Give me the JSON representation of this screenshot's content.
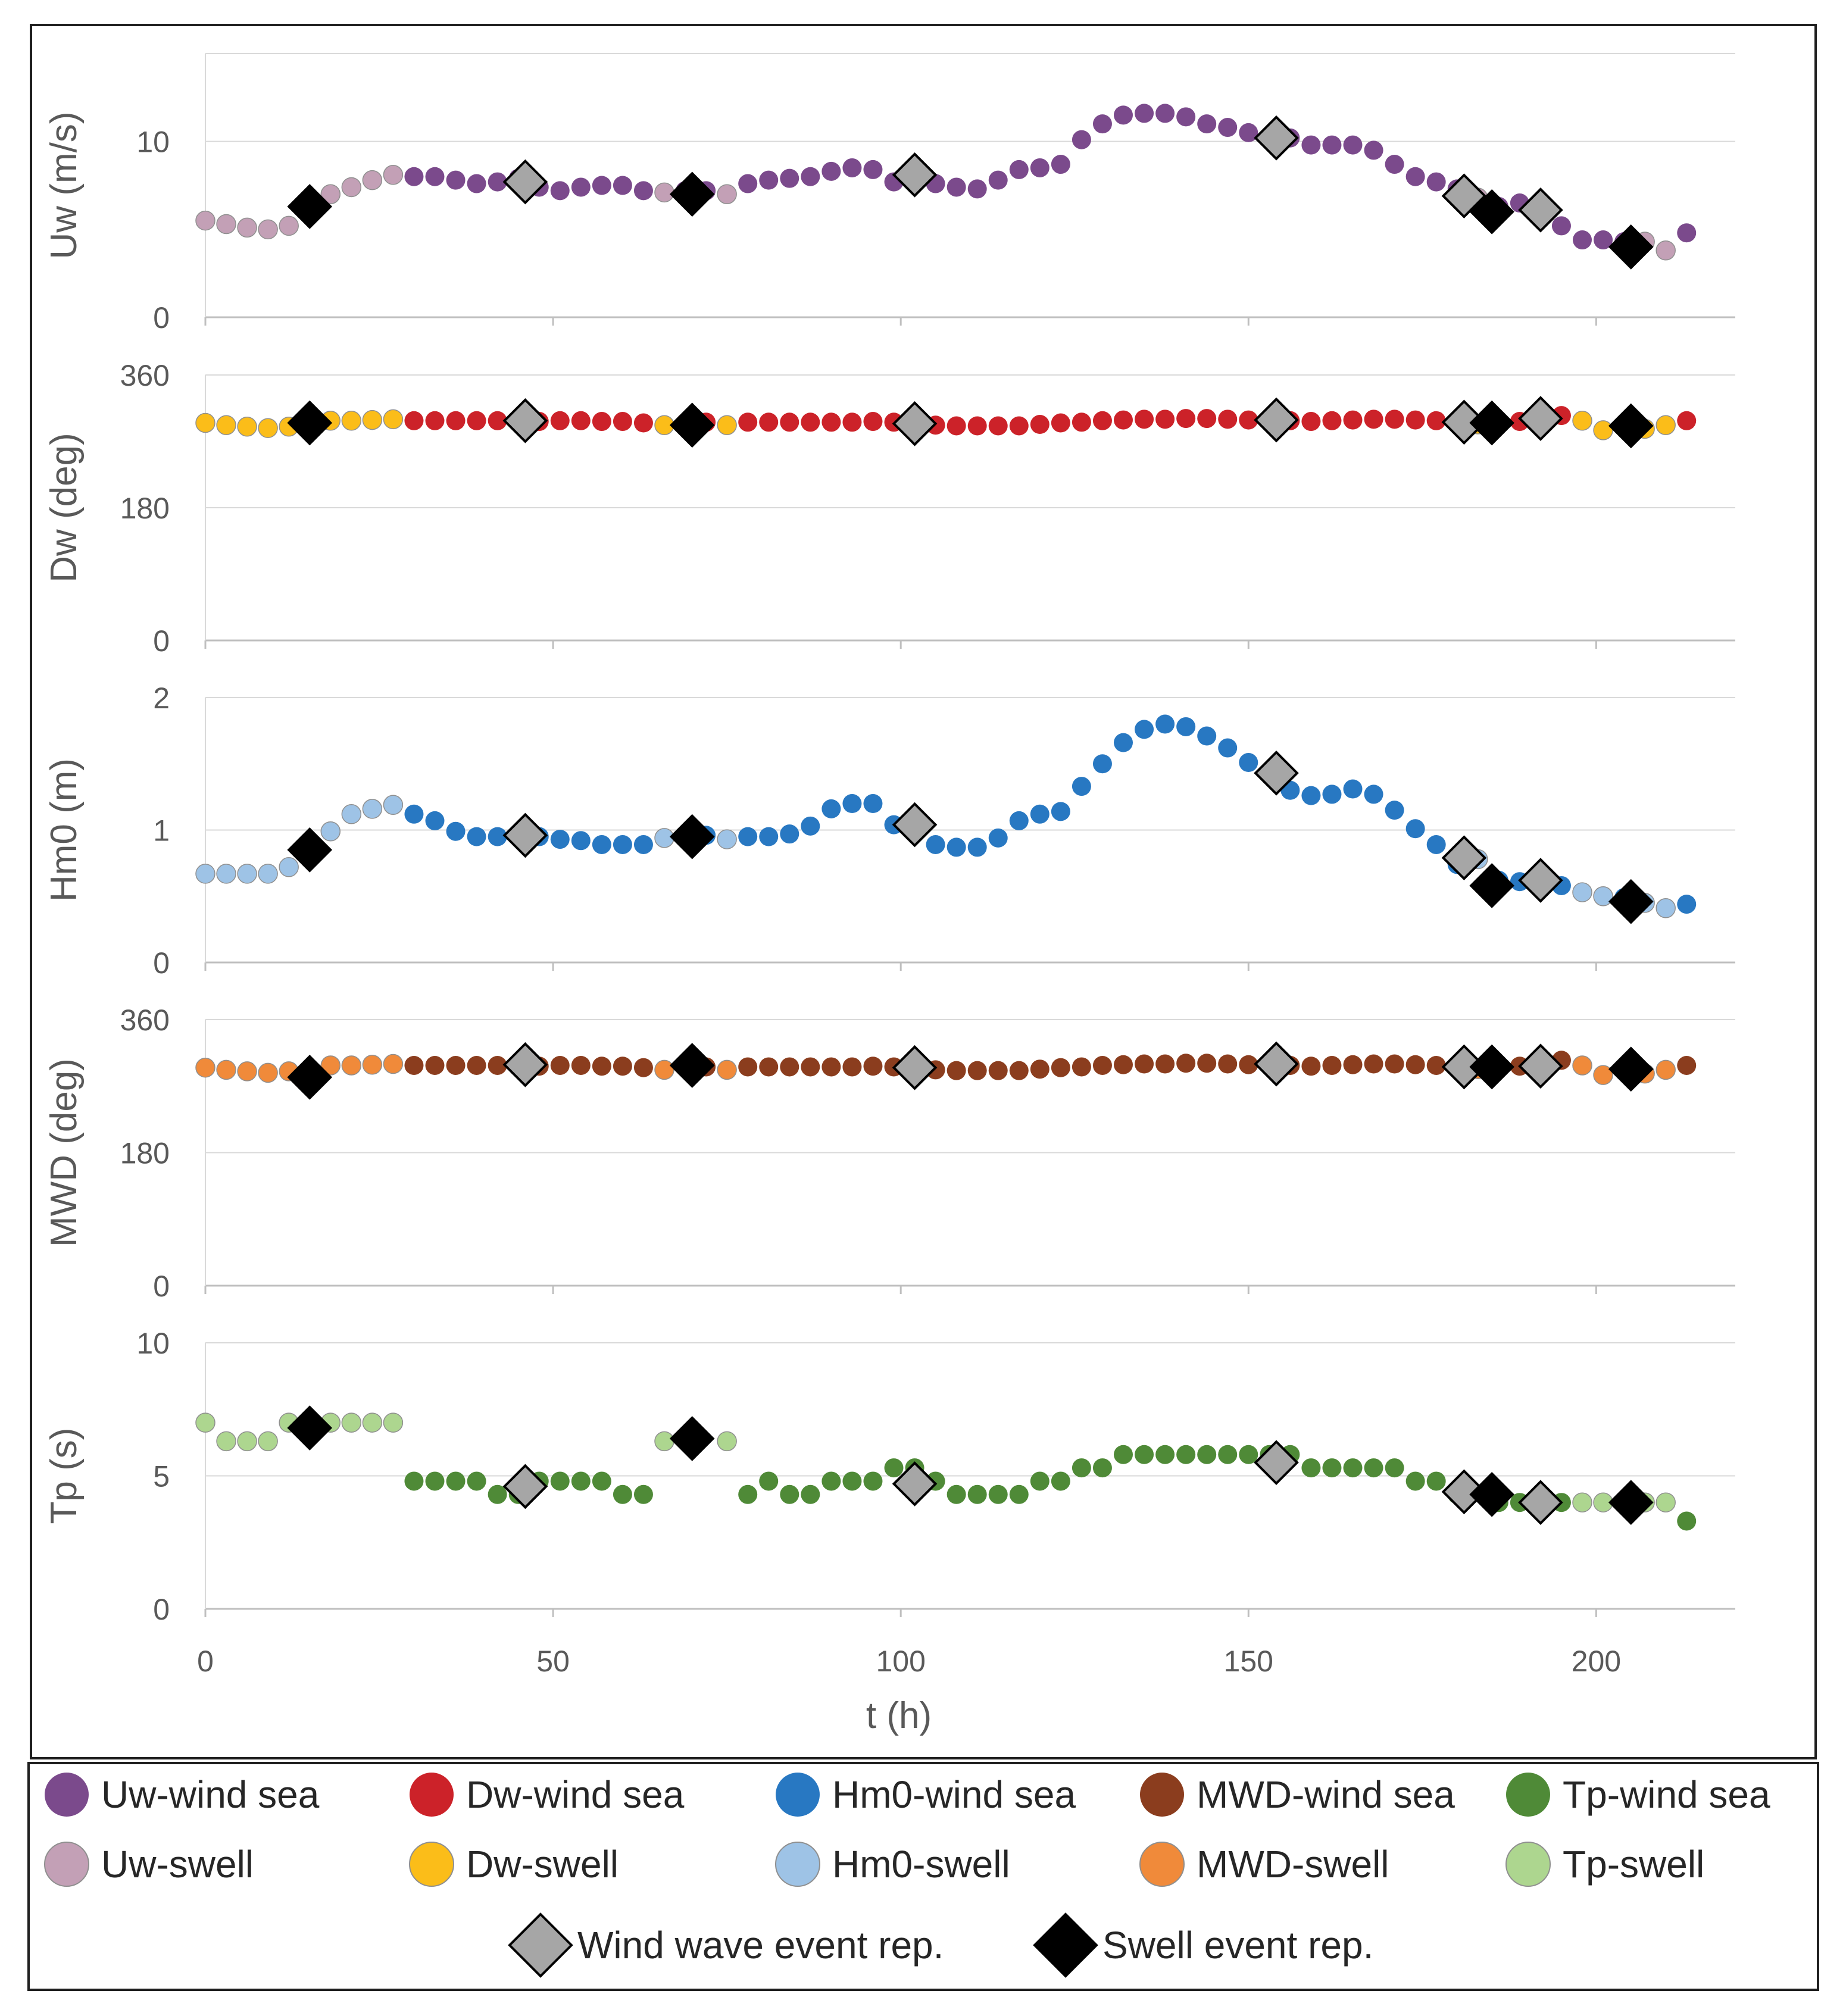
{
  "figure": {
    "xlabel": "t (h)",
    "xticks": [
      0,
      50,
      100,
      150,
      200
    ],
    "xlim": [
      0,
      220
    ]
  },
  "colors": {
    "Uw-wind sea": "#7b4a8c",
    "Uw-swell": "#c3a0b6",
    "Dw-wind sea": "#cc2229",
    "Dw-swell": "#fbbd19",
    "Hm0-wind sea": "#2878c2",
    "Hm0-swell": "#9ec3e6",
    "MWD-wind sea": "#8b3d1e",
    "MWD-swell": "#f08a3a",
    "Tp-wind sea": "#4f8a37",
    "Tp-swell": "#add68f",
    "Wind wave event rep.": "#a6a6a6",
    "Swell event rep.": "#000000",
    "gridline": "#d9d9d9",
    "axis": "#bfbfbf",
    "text": "#595959"
  },
  "legend": {
    "items": [
      {
        "label": "Uw-wind sea",
        "marker": "circle"
      },
      {
        "label": "Dw-wind sea",
        "marker": "circle"
      },
      {
        "label": "Hm0-wind sea",
        "marker": "circle"
      },
      {
        "label": "MWD-wind sea",
        "marker": "circle"
      },
      {
        "label": "Tp-wind sea",
        "marker": "circle"
      },
      {
        "label": "Uw-swell",
        "marker": "circle"
      },
      {
        "label": "Dw-swell",
        "marker": "circle"
      },
      {
        "label": "Hm0-swell",
        "marker": "circle"
      },
      {
        "label": "MWD-swell",
        "marker": "circle"
      },
      {
        "label": "Tp-swell",
        "marker": "circle"
      },
      {
        "label": "Wind wave event rep.",
        "marker": "diamond"
      },
      {
        "label": "Swell event rep.",
        "marker": "diamond"
      }
    ]
  },
  "chart_data": [
    {
      "type": "scatter",
      "id": "uw",
      "ylabel": "Uw (m/s)",
      "ylim": [
        0,
        15
      ],
      "yticks": [
        0,
        10
      ],
      "series": [
        {
          "name": "Uw-swell",
          "x": [
            0,
            3,
            6,
            9,
            12,
            18,
            21,
            24,
            27,
            66,
            75,
            183,
            207,
            210
          ],
          "y": [
            5.5,
            5.3,
            5.1,
            5.0,
            5.2,
            7.0,
            7.4,
            7.8,
            8.1,
            7.1,
            7.0,
            6.8,
            4.3,
            3.8
          ]
        },
        {
          "name": "Uw-wind sea",
          "x": [
            15,
            30,
            33,
            36,
            39,
            42,
            45,
            48,
            51,
            54,
            57,
            60,
            63,
            69,
            72,
            78,
            81,
            84,
            87,
            90,
            93,
            96,
            99,
            102,
            105,
            108,
            111,
            114,
            117,
            120,
            123,
            126,
            129,
            132,
            135,
            138,
            141,
            144,
            147,
            150,
            153,
            156,
            159,
            162,
            165,
            168,
            171,
            174,
            177,
            180,
            186,
            189,
            192,
            195,
            198,
            201,
            204,
            213
          ],
          "y": [
            6.2,
            8.0,
            8.0,
            7.8,
            7.6,
            7.7,
            7.9,
            7.4,
            7.2,
            7.4,
            7.5,
            7.5,
            7.2,
            7.2,
            7.2,
            7.6,
            7.8,
            7.9,
            8.0,
            8.3,
            8.5,
            8.4,
            7.7,
            8.0,
            7.6,
            7.4,
            7.3,
            7.8,
            8.4,
            8.5,
            8.7,
            10.1,
            11.0,
            11.5,
            11.6,
            11.6,
            11.4,
            11.0,
            10.8,
            10.5,
            10.2,
            10.2,
            9.8,
            9.8,
            9.8,
            9.5,
            8.7,
            8.0,
            7.7,
            7.3,
            6.3,
            6.5,
            6.6,
            5.2,
            4.4,
            4.4,
            4.3,
            4.8
          ]
        },
        {
          "name": "Wind wave event rep.",
          "x": [
            46,
            102,
            154,
            181,
            192
          ],
          "y": [
            7.7,
            8.1,
            10.2,
            6.9,
            6.1
          ]
        },
        {
          "name": "Swell event rep.",
          "x": [
            15,
            70,
            185,
            205
          ],
          "y": [
            6.3,
            7.0,
            6.0,
            4.0
          ]
        }
      ]
    },
    {
      "type": "scatter",
      "id": "dw",
      "ylabel": "Dw (deg)",
      "ylim": [
        0,
        360
      ],
      "yticks": [
        0,
        180,
        360
      ],
      "series": [
        {
          "name": "Dw-swell",
          "x": [
            0,
            3,
            6,
            9,
            12,
            18,
            21,
            24,
            27,
            66,
            75,
            183,
            198,
            201,
            207,
            210
          ],
          "y": [
            295,
            292,
            290,
            288,
            290,
            298,
            298,
            299,
            300,
            292,
            292,
            293,
            298,
            285,
            287,
            292
          ]
        },
        {
          "name": "Dw-wind sea",
          "x": [
            15,
            30,
            33,
            36,
            39,
            42,
            45,
            48,
            51,
            54,
            57,
            60,
            63,
            69,
            72,
            78,
            81,
            84,
            87,
            90,
            93,
            96,
            99,
            102,
            105,
            108,
            111,
            114,
            117,
            120,
            123,
            126,
            129,
            132,
            135,
            138,
            141,
            144,
            147,
            150,
            153,
            156,
            159,
            162,
            165,
            168,
            171,
            174,
            177,
            180,
            186,
            189,
            192,
            195,
            204,
            213
          ],
          "y": [
            294,
            298,
            298,
            298,
            298,
            298,
            296,
            297,
            298,
            298,
            297,
            297,
            295,
            295,
            296,
            296,
            296,
            296,
            296,
            296,
            296,
            297,
            296,
            294,
            292,
            291,
            291,
            291,
            291,
            293,
            295,
            296,
            298,
            299,
            300,
            300,
            301,
            301,
            300,
            299,
            298,
            298,
            297,
            298,
            299,
            300,
            300,
            299,
            298,
            296,
            296,
            297,
            299,
            305,
            292,
            298
          ]
        },
        {
          "name": "Wind wave event rep.",
          "x": [
            46,
            102,
            154,
            181,
            192
          ],
          "y": [
            298,
            294,
            299,
            296,
            301
          ]
        },
        {
          "name": "Swell event rep.",
          "x": [
            15,
            70,
            185,
            205
          ],
          "y": [
            295,
            292,
            295,
            291
          ]
        }
      ]
    },
    {
      "type": "scatter",
      "id": "hm0",
      "ylabel": "Hm0 (m)",
      "ylim": [
        0,
        2
      ],
      "yticks": [
        0,
        1,
        2
      ],
      "series": [
        {
          "name": "Hm0-swell",
          "x": [
            0,
            3,
            6,
            9,
            12,
            18,
            21,
            24,
            27,
            66,
            69,
            75,
            183,
            198,
            201,
            207,
            210
          ],
          "y": [
            0.67,
            0.67,
            0.67,
            0.67,
            0.72,
            0.99,
            1.12,
            1.16,
            1.19,
            0.94,
            0.96,
            0.93,
            0.78,
            0.53,
            0.5,
            0.45,
            0.41
          ]
        },
        {
          "name": "Hm0-wind sea",
          "x": [
            15,
            30,
            33,
            36,
            39,
            42,
            45,
            48,
            51,
            54,
            57,
            60,
            63,
            72,
            78,
            81,
            84,
            87,
            90,
            93,
            96,
            99,
            102,
            105,
            108,
            111,
            114,
            117,
            120,
            123,
            126,
            129,
            132,
            135,
            138,
            141,
            144,
            147,
            150,
            153,
            156,
            159,
            162,
            165,
            168,
            171,
            174,
            177,
            180,
            186,
            189,
            192,
            195,
            204,
            213
          ],
          "y": [
            0.84,
            1.12,
            1.07,
            0.99,
            0.95,
            0.95,
            0.97,
            0.95,
            0.93,
            0.92,
            0.89,
            0.89,
            0.89,
            0.96,
            0.95,
            0.95,
            0.97,
            1.03,
            1.16,
            1.2,
            1.2,
            1.04,
            1.0,
            0.89,
            0.87,
            0.87,
            0.94,
            1.07,
            1.12,
            1.14,
            1.33,
            1.5,
            1.66,
            1.76,
            1.8,
            1.78,
            1.71,
            1.62,
            1.51,
            1.43,
            1.3,
            1.26,
            1.27,
            1.31,
            1.27,
            1.15,
            1.01,
            0.89,
            0.74,
            0.62,
            0.61,
            0.61,
            0.58,
            0.49,
            0.44
          ]
        },
        {
          "name": "Wind wave event rep.",
          "x": [
            46,
            102,
            154,
            181,
            192
          ],
          "y": [
            0.96,
            1.04,
            1.43,
            0.79,
            0.62
          ]
        },
        {
          "name": "Swell event rep.",
          "x": [
            15,
            70,
            185,
            205
          ],
          "y": [
            0.85,
            0.95,
            0.58,
            0.46
          ]
        }
      ]
    },
    {
      "type": "scatter",
      "id": "mwd",
      "ylabel": "MWD (deg)",
      "ylim": [
        0,
        360
      ],
      "yticks": [
        0,
        180,
        360
      ],
      "series": [
        {
          "name": "MWD-swell",
          "x": [
            0,
            3,
            6,
            9,
            12,
            18,
            21,
            24,
            27,
            66,
            75,
            183,
            198,
            201,
            207,
            210
          ],
          "y": [
            295,
            292,
            290,
            288,
            290,
            298,
            298,
            299,
            300,
            292,
            292,
            293,
            298,
            285,
            287,
            292
          ]
        },
        {
          "name": "MWD-wind sea",
          "x": [
            15,
            30,
            33,
            36,
            39,
            42,
            45,
            48,
            51,
            54,
            57,
            60,
            63,
            69,
            72,
            78,
            81,
            84,
            87,
            90,
            93,
            96,
            99,
            102,
            105,
            108,
            111,
            114,
            117,
            120,
            123,
            126,
            129,
            132,
            135,
            138,
            141,
            144,
            147,
            150,
            153,
            156,
            159,
            162,
            165,
            168,
            171,
            174,
            177,
            180,
            186,
            189,
            192,
            195,
            204,
            213
          ],
          "y": [
            284,
            298,
            298,
            298,
            298,
            298,
            296,
            297,
            298,
            298,
            297,
            297,
            295,
            295,
            296,
            296,
            296,
            296,
            296,
            296,
            296,
            297,
            296,
            294,
            292,
            291,
            291,
            291,
            291,
            293,
            295,
            296,
            298,
            299,
            300,
            300,
            301,
            301,
            300,
            299,
            298,
            298,
            297,
            298,
            299,
            300,
            300,
            299,
            298,
            296,
            296,
            297,
            299,
            305,
            292,
            298
          ]
        },
        {
          "name": "Wind wave event rep.",
          "x": [
            46,
            102,
            154,
            181,
            192
          ],
          "y": [
            299,
            295,
            300,
            296,
            297
          ]
        },
        {
          "name": "Swell event rep.",
          "x": [
            15,
            70,
            185,
            205
          ],
          "y": [
            282,
            298,
            296,
            293
          ]
        }
      ]
    },
    {
      "type": "scatter",
      "id": "tp",
      "ylabel": "Tp (s)",
      "ylim": [
        0,
        10
      ],
      "yticks": [
        0,
        5,
        10
      ],
      "series": [
        {
          "name": "Tp-swell",
          "x": [
            0,
            3,
            6,
            9,
            12,
            18,
            21,
            24,
            27,
            66,
            75,
            198,
            201,
            207,
            210
          ],
          "y": [
            7.0,
            6.3,
            6.3,
            6.3,
            7.0,
            7.0,
            7.0,
            7.0,
            7.0,
            6.3,
            6.3,
            4.0,
            4.0,
            4.0,
            4.0
          ]
        },
        {
          "name": "Tp-wind sea",
          "x": [
            15,
            30,
            33,
            36,
            39,
            42,
            45,
            48,
            51,
            54,
            57,
            60,
            63,
            78,
            81,
            84,
            87,
            90,
            93,
            96,
            99,
            102,
            105,
            108,
            111,
            114,
            117,
            120,
            123,
            126,
            129,
            132,
            135,
            138,
            141,
            144,
            147,
            150,
            153,
            156,
            159,
            162,
            165,
            168,
            171,
            174,
            177,
            180,
            186,
            189,
            192,
            195,
            204,
            213
          ],
          "y": [
            6.8,
            4.8,
            4.8,
            4.8,
            4.8,
            4.3,
            4.3,
            4.8,
            4.8,
            4.8,
            4.8,
            4.3,
            4.3,
            4.3,
            4.8,
            4.3,
            4.3,
            4.8,
            4.8,
            4.8,
            5.3,
            5.3,
            4.8,
            4.3,
            4.3,
            4.3,
            4.3,
            4.8,
            4.8,
            5.3,
            5.3,
            5.8,
            5.8,
            5.8,
            5.8,
            5.8,
            5.8,
            5.8,
            5.8,
            5.8,
            5.3,
            5.3,
            5.3,
            5.3,
            5.3,
            4.8,
            4.8,
            4.3,
            4.0,
            4.0,
            4.0,
            4.0,
            4.0,
            3.3
          ]
        },
        {
          "name": "Wind wave event rep.",
          "x": [
            46,
            102,
            154,
            181,
            192
          ],
          "y": [
            4.6,
            4.7,
            5.5,
            4.4,
            4.0
          ]
        },
        {
          "name": "Swell event rep.",
          "x": [
            15,
            70,
            185,
            205
          ],
          "y": [
            6.8,
            6.4,
            4.3,
            4.0
          ]
        }
      ]
    }
  ]
}
